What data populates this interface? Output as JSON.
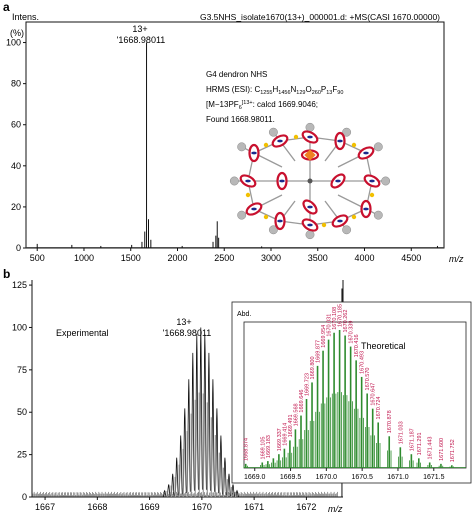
{
  "panel_a": {
    "label": "a",
    "header": "G3.5NHS_isolate1670(13+)_000001.d: +MS(CASI 1670.00000)",
    "ylabel_1": "Intens.",
    "ylabel_2": "(%)",
    "peak_label_charge": "13+",
    "peak_label_mz": "1668.98011",
    "annotation": {
      "title": "G4 dendron NHS",
      "formula_prefix": "HRMS (ESI): C",
      "c": "1255",
      "h": "1456",
      "n": "129",
      "o": "260",
      "p": "13",
      "f": "90",
      "ion_prefix": "[M−13PF",
      "ion_sub": "6",
      "ion_sup": "]13+",
      "ion_suffix": ": calcd 1669.9046;",
      "found": "Found 1668.98011."
    }
  },
  "panel_b": {
    "label": "b",
    "experimental_label": "Experimental",
    "peak_label_charge": "13+",
    "peak_label_mz": "1668.98011",
    "inset": {
      "ylabel": "Abd.",
      "title": "Theoretical"
    }
  },
  "xlabel": "m/z",
  "chart_data": [
    {
      "type": "line",
      "title": "G3.5NHS_isolate1670(13+)_000001.d: +MS(CASI 1670.00000)",
      "xlabel": "m/z",
      "ylabel": "Intens. (%)",
      "xlim": [
        380,
        4850
      ],
      "ylim": [
        0,
        110
      ],
      "xticks": [
        500,
        1000,
        1500,
        2000,
        2500,
        3000,
        3500,
        4000,
        4500
      ],
      "yticks": [
        0,
        20,
        40,
        60,
        80,
        100
      ],
      "peaks": [
        {
          "x": 500,
          "y": 2
        },
        {
          "x": 870,
          "y": 1.5
        },
        {
          "x": 1180,
          "y": 1
        },
        {
          "x": 1510,
          "y": 1.5
        },
        {
          "x": 1620,
          "y": 3
        },
        {
          "x": 1650,
          "y": 8
        },
        {
          "x": 1669,
          "y": 100
        },
        {
          "x": 1690,
          "y": 14
        },
        {
          "x": 1715,
          "y": 4
        },
        {
          "x": 2050,
          "y": 1
        },
        {
          "x": 2380,
          "y": 3
        },
        {
          "x": 2410,
          "y": 6
        },
        {
          "x": 2425,
          "y": 13
        },
        {
          "x": 2440,
          "y": 5
        },
        {
          "x": 2900,
          "y": 0.8
        },
        {
          "x": 4780,
          "y": 1
        }
      ],
      "annotations": [
        "13+",
        "1668.98011"
      ]
    },
    {
      "type": "line",
      "xlabel": "m/z",
      "xlim": [
        1666.75,
        1672.7
      ],
      "ylim": [
        0,
        128
      ],
      "xticks": [
        1667,
        1668,
        1669,
        1670,
        1671,
        1672
      ],
      "yticks": [
        0,
        25,
        50,
        75,
        100,
        125
      ],
      "isotope_envelope": {
        "center": 1669.98,
        "spacing_mz": 0.0769,
        "max_intensity": 100,
        "sigma_mz": 0.27
      },
      "annotations": [
        "Experimental",
        "13+",
        "1668.98011"
      ]
    },
    {
      "type": "bar",
      "title": "Theoretical",
      "ylabel": "Abd.",
      "xlim": [
        1668.85,
        1671.95
      ],
      "xticks": [
        1669.0,
        1669.5,
        1670.0,
        1670.5,
        1671.0,
        1671.5
      ],
      "series": [
        {
          "color": "#2e8b2e",
          "x": [
            1668.874,
            1669.105,
            1669.183,
            1669.26,
            1669.337,
            1669.414,
            1669.491,
            1669.568,
            1669.646,
            1669.723,
            1669.8,
            1669.877,
            1669.954,
            1670.031,
            1670.108,
            1670.185,
            1670.262,
            1670.339,
            1670.416,
            1670.493,
            1670.57,
            1670.647,
            1670.724,
            1670.878,
            1671.033,
            1671.187,
            1671.291,
            1671.443,
            1671.6,
            1671.752
          ],
          "values": [
            3,
            4,
            5,
            7,
            10,
            14,
            20,
            28,
            38,
            50,
            62,
            74,
            85,
            93,
            98,
            100,
            96,
            88,
            78,
            66,
            54,
            43,
            33,
            23,
            15,
            10,
            7,
            4,
            3,
            2
          ]
        }
      ],
      "peak_labels": [
        "1668.874",
        "1669.105",
        "1669.183",
        "1669.337",
        "1669.414",
        "1669.491",
        "1669.568",
        "1669.646",
        "1669.723",
        "1669.800",
        "1669.877",
        "1669.954",
        "1670.031",
        "1670.108",
        "1670.185",
        "1670.262",
        "1670.339",
        "1670.416",
        "1670.493",
        "1670.570",
        "1670.647",
        "1670.724",
        "1670.878",
        "1671.033",
        "1671.187",
        "1671.291",
        "1671.443",
        "1671.600",
        "1671.752"
      ]
    }
  ],
  "colors": {
    "axis": "#111111",
    "theory_line": "#2e8b2e",
    "theory_label": "#c0144c",
    "molecule_red": "#c8102e",
    "molecule_blue": "#1a2a8c",
    "molecule_gray": "#b8b8b8",
    "molecule_yellow": "#f2c000",
    "molecule_orange": "#f08020"
  }
}
